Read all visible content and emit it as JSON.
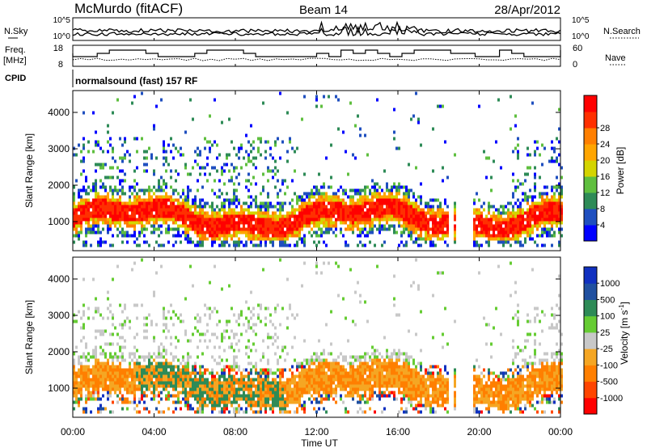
{
  "header": {
    "radar": "McMurdo (fitACF)",
    "beam": "Beam 14",
    "date": "28/Apr/2012"
  },
  "panels": {
    "noise": {
      "left_label": "N.Sky",
      "right_label": "N.Search",
      "left_ticks": [
        "10^5",
        "10^0"
      ],
      "right_ticks": [
        "10^5",
        "10^0"
      ]
    },
    "freq": {
      "left_label_1": "Freq.",
      "left_label_2": "[MHz]",
      "right_label": "Nave",
      "left_ticks": [
        "18",
        "8"
      ],
      "right_ticks": [
        "60",
        "0"
      ]
    },
    "cpid": {
      "label": "CPID",
      "text": "normalsound (fast) 157 RF"
    }
  },
  "colors": {
    "power": [
      "#0000ff",
      "#1f4fbf",
      "#2e8b57",
      "#5fbf3f",
      "#d4d400",
      "#ffa500",
      "#ff7f00",
      "#ff3000",
      "#ff0000"
    ],
    "velocity": [
      "#ff0000",
      "#ff4500",
      "#ff7f00",
      "#f5a623",
      "#c8c8c8",
      "#66cc33",
      "#2e8b57",
      "#2050a0",
      "#1030c0"
    ]
  },
  "chart_data": [
    {
      "type": "heatmap",
      "name": "power",
      "ylabel": "Slant Range [km]",
      "yticks": [
        "1000",
        "2000",
        "3000",
        "4000"
      ],
      "ylim": [
        200,
        4600
      ],
      "xlim": [
        0,
        24
      ],
      "colorbar_label": "Power [dB]",
      "colorbar_ticks": [
        "4",
        "8",
        "12",
        "16",
        "20",
        "24",
        "28"
      ],
      "colorbar_range": [
        0,
        32
      ]
    },
    {
      "type": "heatmap",
      "name": "velocity",
      "ylabel": "Slant Range [km]",
      "yticks": [
        "1000",
        "2000",
        "3000",
        "4000"
      ],
      "ylim": [
        200,
        4600
      ],
      "xlim": [
        0,
        24
      ],
      "colorbar_label": "Velocity [m s",
      "colorbar_label_sup": "-1",
      "colorbar_label_end": "]",
      "colorbar_ticks": [
        "1000",
        "500",
        "100",
        "25",
        "-25",
        "-100",
        "-500",
        "-1000"
      ]
    }
  ],
  "xaxis": {
    "ticks": [
      "00:00",
      "04:00",
      "08:00",
      "12:00",
      "16:00",
      "20:00",
      "00:00"
    ],
    "label": "Time UT"
  }
}
